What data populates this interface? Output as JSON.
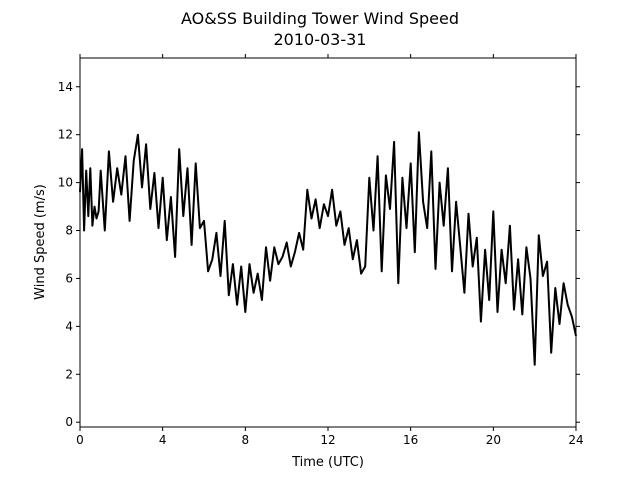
{
  "chart_data": {
    "type": "line",
    "title": "AO&SS Building Tower Wind Speed",
    "subtitle": "2010-03-31",
    "xlabel": "Time (UTC)",
    "ylabel": "Wind Speed (m/s)",
    "xlim": [
      0,
      24
    ],
    "ylim": [
      -0.2,
      15.2
    ],
    "xticks": [
      0,
      4,
      8,
      12,
      16,
      20,
      24
    ],
    "yticks": [
      0,
      2,
      4,
      6,
      8,
      10,
      12,
      14
    ],
    "grid": false,
    "legend": "none",
    "series": [
      {
        "color": "#000000",
        "x": [
          0.0,
          0.1,
          0.2,
          0.3,
          0.4,
          0.5,
          0.6,
          0.7,
          0.8,
          0.9,
          1.0,
          1.2,
          1.4,
          1.6,
          1.8,
          2.0,
          2.2,
          2.4,
          2.6,
          2.8,
          3.0,
          3.2,
          3.4,
          3.6,
          3.8,
          4.0,
          4.2,
          4.4,
          4.6,
          4.8,
          5.0,
          5.2,
          5.4,
          5.6,
          5.8,
          6.0,
          6.2,
          6.4,
          6.6,
          6.8,
          7.0,
          7.2,
          7.4,
          7.6,
          7.8,
          8.0,
          8.2,
          8.4,
          8.6,
          8.8,
          9.0,
          9.2,
          9.4,
          9.6,
          9.8,
          10.0,
          10.2,
          10.4,
          10.6,
          10.8,
          11.0,
          11.2,
          11.4,
          11.6,
          11.8,
          12.0,
          12.2,
          12.4,
          12.6,
          12.8,
          13.0,
          13.2,
          13.4,
          13.6,
          13.8,
          14.0,
          14.2,
          14.4,
          14.6,
          14.8,
          15.0,
          15.2,
          15.4,
          15.6,
          15.8,
          16.0,
          16.2,
          16.4,
          16.6,
          16.8,
          17.0,
          17.2,
          17.4,
          17.6,
          17.8,
          18.0,
          18.2,
          18.4,
          18.6,
          18.8,
          19.0,
          19.2,
          19.4,
          19.6,
          19.8,
          20.0,
          20.2,
          20.4,
          20.6,
          20.8,
          21.0,
          21.2,
          21.4,
          21.6,
          21.8,
          22.0,
          22.2,
          22.4,
          22.6,
          22.8,
          23.0,
          23.2,
          23.4,
          23.6,
          23.8,
          24.0
        ],
        "y": [
          9.6,
          11.4,
          8.0,
          10.5,
          8.6,
          10.6,
          8.2,
          9.0,
          8.5,
          8.8,
          10.5,
          8.0,
          11.3,
          9.2,
          10.6,
          9.5,
          11.1,
          8.4,
          10.9,
          12.0,
          9.8,
          11.6,
          8.9,
          10.4,
          8.1,
          10.2,
          7.6,
          9.4,
          6.9,
          11.4,
          8.6,
          10.6,
          7.4,
          10.8,
          8.1,
          8.4,
          6.3,
          6.8,
          7.9,
          6.1,
          8.4,
          5.3,
          6.6,
          4.9,
          6.5,
          4.6,
          6.6,
          5.4,
          6.2,
          5.1,
          7.3,
          5.9,
          7.3,
          6.6,
          6.9,
          7.5,
          6.5,
          7.1,
          7.9,
          7.2,
          9.7,
          8.5,
          9.3,
          8.1,
          9.1,
          8.6,
          9.7,
          8.2,
          8.8,
          7.4,
          8.1,
          6.8,
          7.6,
          6.2,
          6.5,
          10.2,
          8.0,
          11.1,
          6.3,
          10.3,
          8.9,
          11.7,
          5.8,
          10.2,
          8.1,
          10.8,
          7.1,
          12.1,
          9.2,
          8.1,
          11.3,
          6.4,
          10.0,
          8.2,
          10.6,
          6.3,
          9.2,
          7.3,
          5.4,
          8.7,
          6.5,
          7.7,
          4.2,
          7.2,
          5.1,
          8.8,
          4.6,
          7.2,
          5.8,
          8.2,
          4.7,
          6.8,
          4.5,
          7.3,
          6.0,
          2.4,
          7.8,
          6.1,
          6.7,
          2.9,
          5.6,
          4.1,
          5.8,
          4.9,
          4.4,
          3.6
        ]
      }
    ]
  }
}
